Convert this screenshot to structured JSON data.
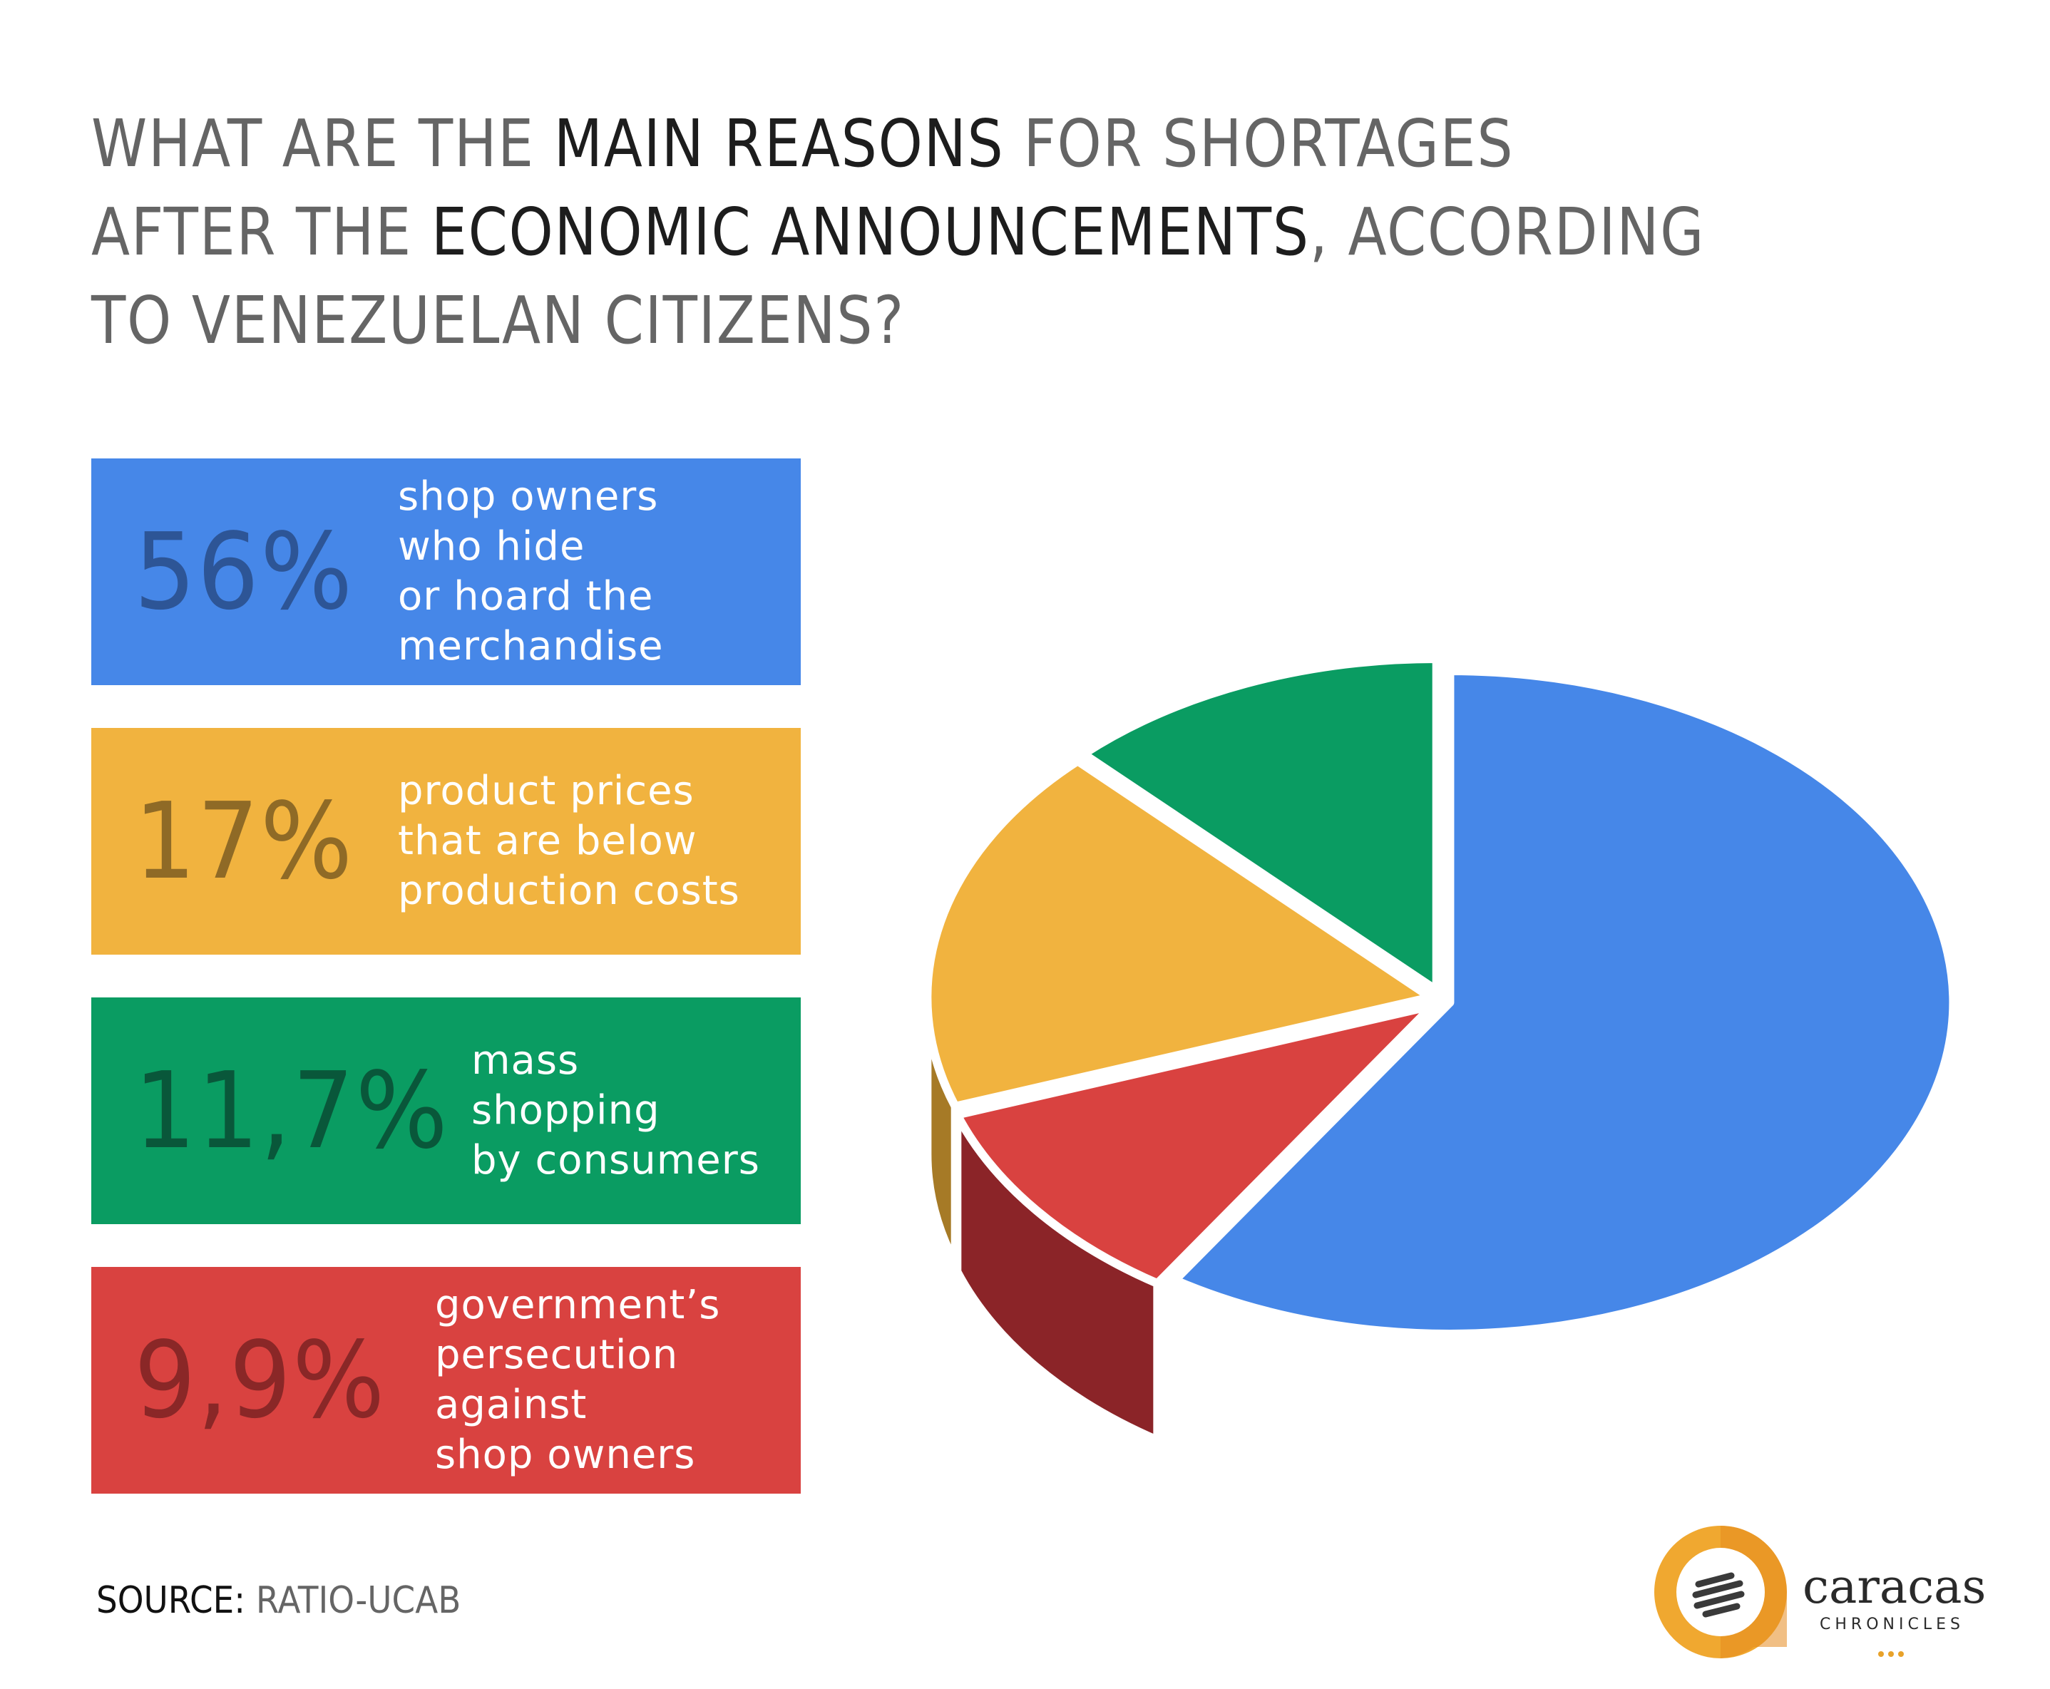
{
  "title": {
    "part1": "WHAT ARE THE ",
    "part2": "MAIN REASONS",
    "part3": " FOR SHORTAGES AFTER THE ",
    "part4": "ECONOMIC ANNOUNCEMENTS",
    "part5": ", ACCORDING TO VENEZUELAN CITIZENS?"
  },
  "legend": [
    {
      "percent": "56%",
      "text": "shop owners\nwho hide\nor hoard the\nmerchandise",
      "color": "#4687e8",
      "pct_color": "#2d5596"
    },
    {
      "percent": "17%",
      "text": "product prices\nthat are below\nproduction costs",
      "color": "#f1b33f",
      "pct_color": "#8f6a26"
    },
    {
      "percent": "11,7%",
      "text": "mass\nshopping\nby consumers",
      "color": "#0a9c62",
      "pct_color": "#09573a"
    },
    {
      "percent": "9,9%",
      "text": "government’s\npersecution\nagainst\nshop owners",
      "color": "#d94240",
      "pct_color": "#8a2727"
    }
  ],
  "source": {
    "label": "SOURCE:",
    "value": " RATIO-UCAB"
  },
  "logo": {
    "name": "caracas",
    "sub": "CHRONICLES",
    "brand_color": "#e8a22a"
  },
  "chart_data": {
    "type": "pie",
    "style": "3d",
    "slices": [
      {
        "label": "shop owners who hide or hoard the merchandise",
        "value": 56,
        "color": "#4687e8",
        "side_color": "#2b5290"
      },
      {
        "label": "government’s persecution against shop owners",
        "value": 9.9,
        "color": "#d94240",
        "side_color": "#8b2428"
      },
      {
        "label": "product prices that are below production costs",
        "value": 17,
        "color": "#f1b33f",
        "side_color": "#a67a26"
      },
      {
        "label": "mass shopping by consumers",
        "value": 11.7,
        "color": "#0a9c62",
        "side_color": "#066b43"
      }
    ]
  }
}
